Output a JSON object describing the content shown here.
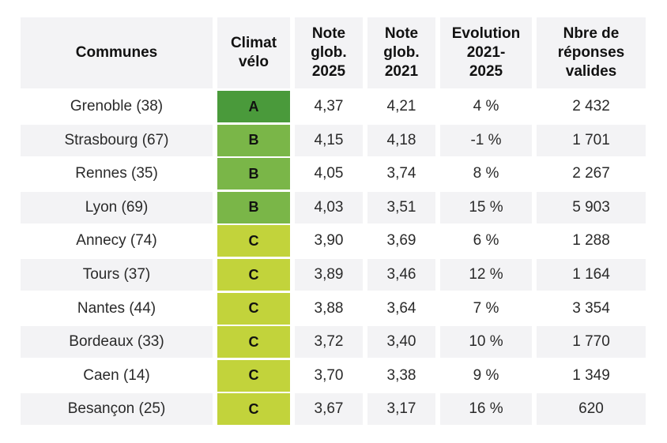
{
  "chart_data": {
    "type": "table",
    "columns": [
      "Communes",
      "Climat vélo",
      "Note glob. 2025",
      "Note glob. 2021",
      "Evolution 2021-2025",
      "Nbre de réponses valides"
    ],
    "header_lines": [
      [
        "Communes"
      ],
      [
        "Climat",
        "vélo"
      ],
      [
        "Note",
        "glob.",
        "2025"
      ],
      [
        "Note",
        "glob.",
        "2021"
      ],
      [
        "Evolution",
        "2021-",
        "2025"
      ],
      [
        "Nbre de",
        "réponses",
        "valides"
      ]
    ],
    "rows": [
      {
        "commune": "Grenoble (38)",
        "climat": "A",
        "note2025": "4,37",
        "note2021": "4,21",
        "evolution": "4 %",
        "reponses": "2 432"
      },
      {
        "commune": "Strasbourg (67)",
        "climat": "B",
        "note2025": "4,15",
        "note2021": "4,18",
        "evolution": "-1 %",
        "reponses": "1 701"
      },
      {
        "commune": "Rennes (35)",
        "climat": "B",
        "note2025": "4,05",
        "note2021": "3,74",
        "evolution": "8 %",
        "reponses": "2 267"
      },
      {
        "commune": "Lyon (69)",
        "climat": "B",
        "note2025": "4,03",
        "note2021": "3,51",
        "evolution": "15 %",
        "reponses": "5 903"
      },
      {
        "commune": "Annecy (74)",
        "climat": "C",
        "note2025": "3,90",
        "note2021": "3,69",
        "evolution": "6 %",
        "reponses": "1 288"
      },
      {
        "commune": "Tours (37)",
        "climat": "C",
        "note2025": "3,89",
        "note2021": "3,46",
        "evolution": "12 %",
        "reponses": "1 164"
      },
      {
        "commune": "Nantes (44)",
        "climat": "C",
        "note2025": "3,88",
        "note2021": "3,64",
        "evolution": "7 %",
        "reponses": "3 354"
      },
      {
        "commune": "Bordeaux (33)",
        "climat": "C",
        "note2025": "3,72",
        "note2021": "3,40",
        "evolution": "10 %",
        "reponses": "1 770"
      },
      {
        "commune": "Caen (14)",
        "climat": "C",
        "note2025": "3,70",
        "note2021": "3,38",
        "evolution": "9 %",
        "reponses": "1 349"
      },
      {
        "commune": "Besançon (25)",
        "climat": "C",
        "note2025": "3,67",
        "note2021": "3,17",
        "evolution": "16 %",
        "reponses": "620"
      }
    ],
    "grade_colors": {
      "A": "#4a9a3b",
      "B": "#7ab648",
      "C": "#c2d33b"
    },
    "banded_rows": true
  }
}
